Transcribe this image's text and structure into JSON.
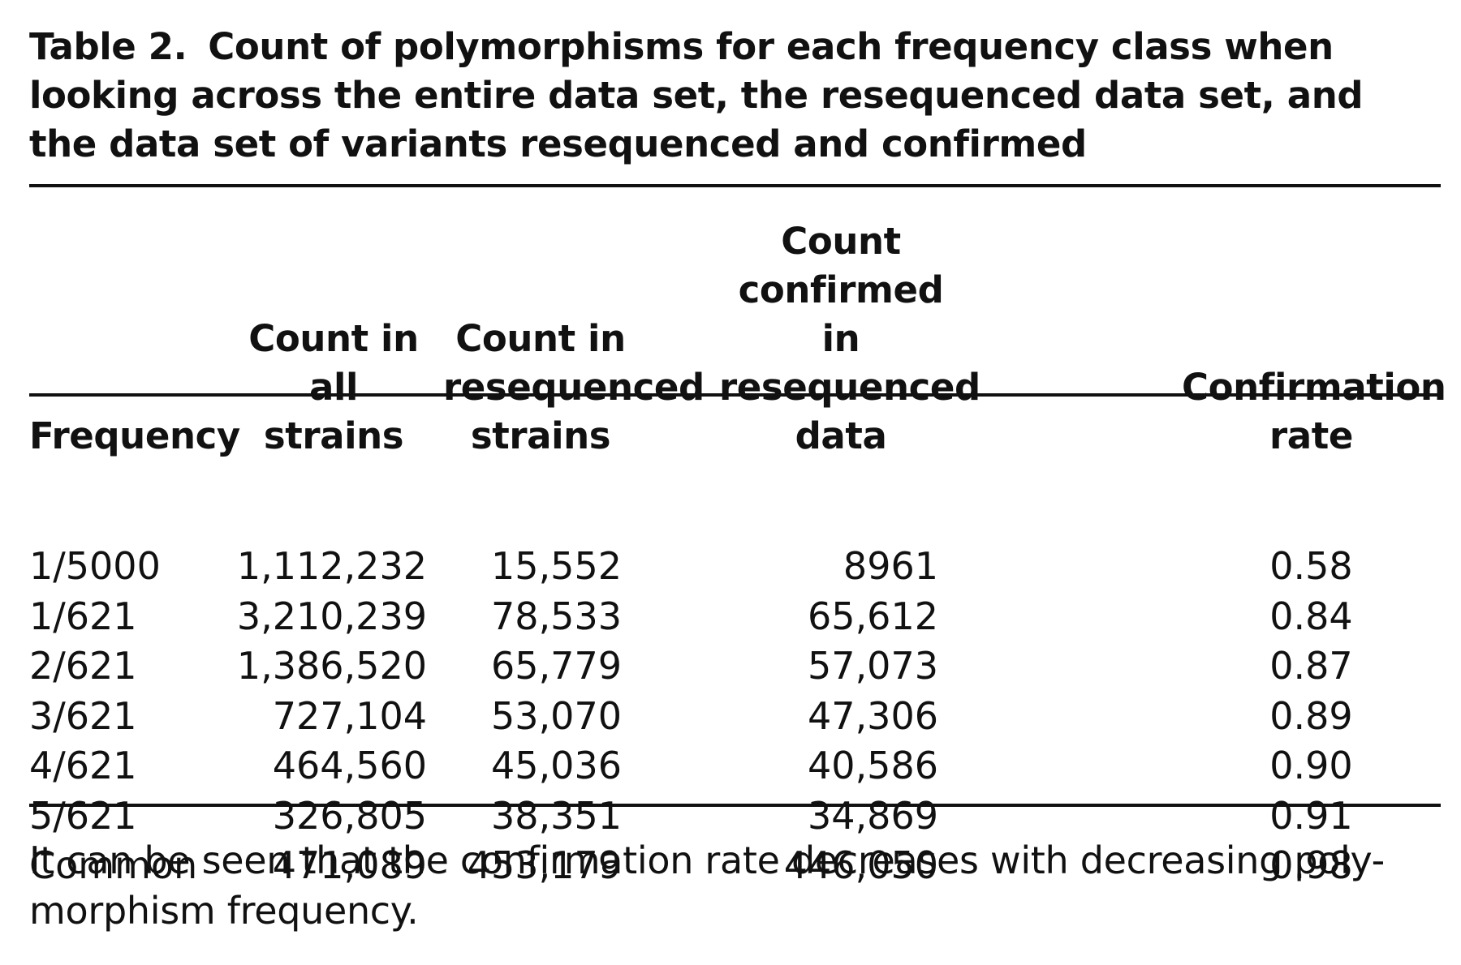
{
  "table": {
    "label": "Table 2.",
    "caption": "Count of polymorphisms for each frequency class when looking across the entire data set, the resequenced data set, and the data set of variants resequenced and confirmed",
    "columns": [
      "Frequency",
      "Count in all strains",
      "Count in resequenced strains",
      "Count confirmed in resequenced data",
      "Confirmation rate"
    ],
    "rows": [
      [
        "1/5000",
        "1,112,232",
        "15,552",
        "8961",
        "0.58"
      ],
      [
        "1/621",
        "3,210,239",
        "78,533",
        "65,612",
        "0.84"
      ],
      [
        "2/621",
        "1,386,520",
        "65,779",
        "57,073",
        "0.87"
      ],
      [
        "3/621",
        "727,104",
        "53,070",
        "47,306",
        "0.89"
      ],
      [
        "4/621",
        "464,560",
        "45,036",
        "40,586",
        "0.90"
      ],
      [
        "5/621",
        "326,805",
        "38,351",
        "34,869",
        "0.91"
      ],
      [
        "Common",
        "471,089",
        "453,179",
        "446,050",
        "0.98"
      ]
    ],
    "footnote_line1": "It can be seen that the confirmation rate decreases with decreasing poly-",
    "footnote_line2": "morphism frequency."
  }
}
